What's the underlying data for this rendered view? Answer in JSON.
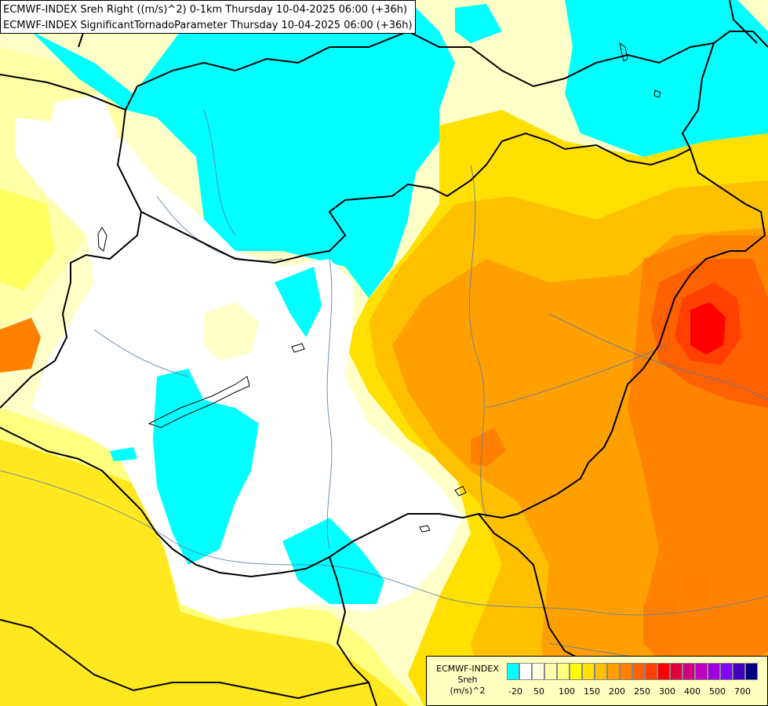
{
  "title": {
    "line1": "ECMWF-INDEX Sreh Right ((m/s)^2) 0-1km Thursday 10-04-2025 06:00 (+36h)",
    "line2": "ECMWF-INDEX SignificantTornadoParameter Thursday 10-04-2025 06:00 (+36h)"
  },
  "legend": {
    "line1": "ECMWF-INDEX",
    "line2": "Sreh",
    "line3": "(m/s)^2",
    "colors": [
      "#00ffff",
      "#ffffff",
      "#ffffe0",
      "#ffffb0",
      "#ffff80",
      "#ffff00",
      "#ffe000",
      "#ffc000",
      "#ffa000",
      "#ff8000",
      "#ff6000",
      "#ff4000",
      "#ff0000",
      "#e00040",
      "#d00080",
      "#c000c0",
      "#a000e0",
      "#8000ff",
      "#4000c0",
      "#000080"
    ],
    "ticks": [
      "-20",
      "50",
      "100",
      "150",
      "200",
      "250",
      "300",
      "400",
      "500",
      "700"
    ]
  }
}
